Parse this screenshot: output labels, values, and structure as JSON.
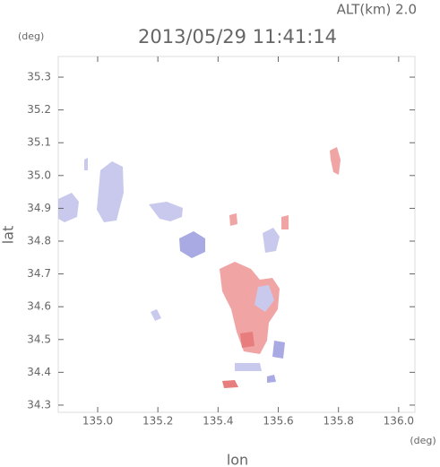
{
  "chart_data": {
    "type": "map",
    "title": "2013/05/29 11:41:14",
    "subtitle": "ALT(km) 2.0",
    "x_label": "lon",
    "y_label": "lat",
    "x_unit": "(deg)",
    "y_unit": "(deg)",
    "xlim": [
      134.869,
      136.054
    ],
    "ylim": [
      34.278,
      35.363
    ],
    "xticks": [
      {
        "value": 135,
        "label": "135.0"
      },
      135.2,
      135.4,
      135.6,
      135.8,
      {
        "value": 136,
        "label": "136.0"
      }
    ],
    "yticks": [
      34.3,
      34.4,
      34.5,
      34.6,
      34.7,
      34.8,
      34.9,
      {
        "value": 35,
        "label": "35.0"
      },
      35.1,
      35.2,
      35.3
    ],
    "grid": false
  }
}
